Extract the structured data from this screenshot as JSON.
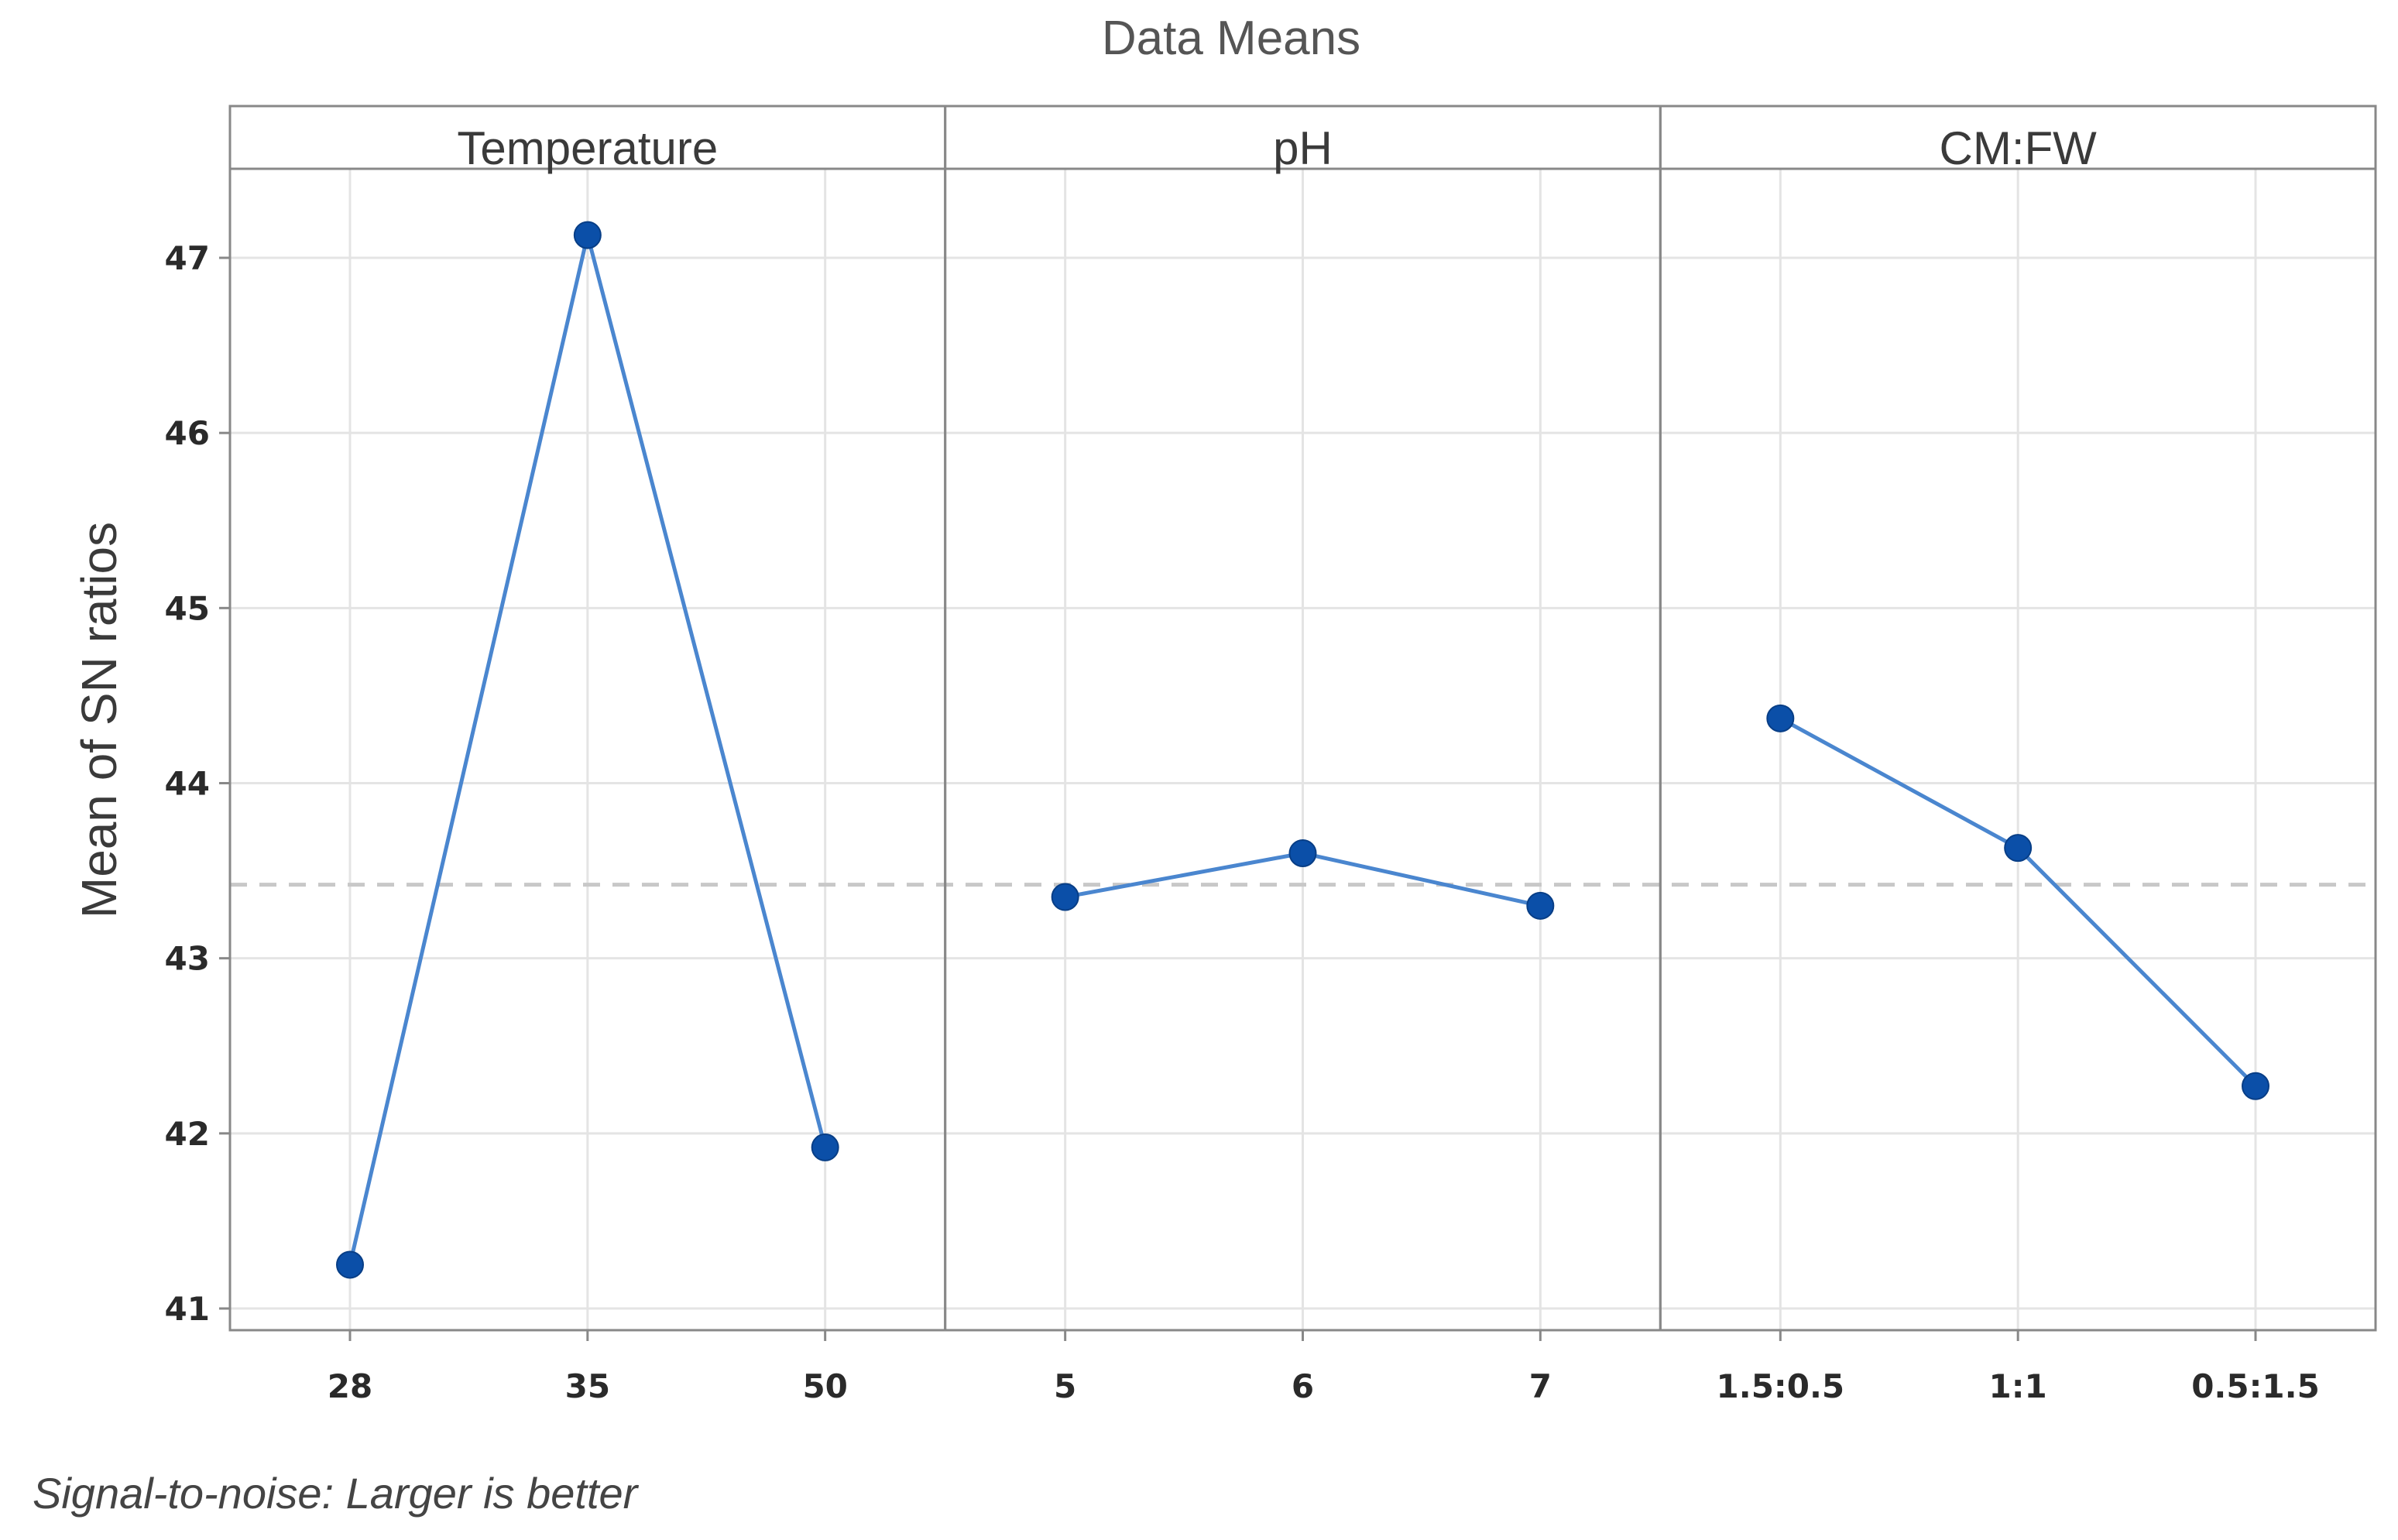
{
  "chart_data": {
    "type": "line",
    "title": "Data Means",
    "ylabel": "Mean of SN ratios",
    "footnote": "Signal-to-noise: Larger is better",
    "ylim": [
      40.9,
      47.5
    ],
    "yticks": [
      41,
      42,
      43,
      44,
      45,
      46,
      47
    ],
    "reference_mean": 43.42,
    "grid": true,
    "colors": {
      "line": "#4a86cf",
      "marker": "#0b4fa8",
      "reference": "#c8c8c8",
      "grid": "#e4e4e4",
      "frame": "#888888"
    },
    "panels": [
      {
        "name": "Temperature",
        "categories": [
          "28",
          "35",
          "50"
        ],
        "values": [
          41.25,
          47.13,
          41.92
        ]
      },
      {
        "name": "pH",
        "categories": [
          "5",
          "6",
          "7"
        ],
        "values": [
          43.35,
          43.6,
          43.3
        ]
      },
      {
        "name": "CM:FW",
        "categories": [
          "1.5:0.5",
          "1:1",
          "0.5:1.5"
        ],
        "values": [
          44.37,
          43.63,
          42.27
        ]
      }
    ]
  }
}
